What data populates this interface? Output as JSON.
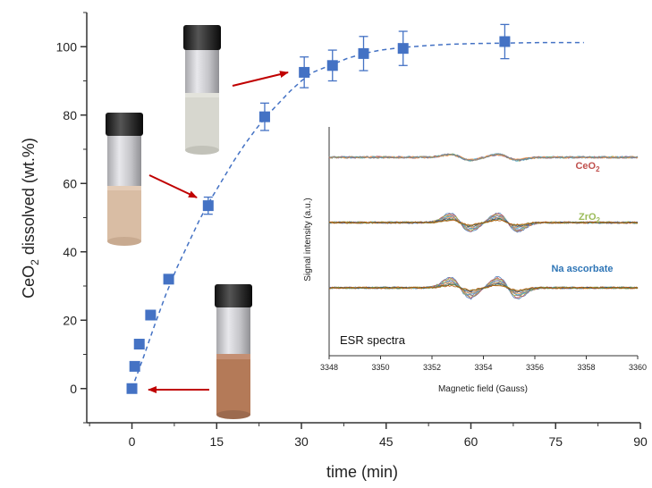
{
  "chart_data": {
    "type": "scatter",
    "xlabel": "time (min)",
    "ylabel_main": "CeO",
    "ylabel_sub": "2",
    "ylabel_rest": " dissolved (wt.%)",
    "xlim": [
      -8,
      90
    ],
    "ylim": [
      -10,
      110
    ],
    "x_ticks": [
      0,
      15,
      30,
      45,
      60,
      75,
      90
    ],
    "y_ticks": [
      0,
      20,
      40,
      60,
      80,
      100
    ],
    "series": [
      {
        "x": [
          0,
          0.5,
          1.3,
          3.3,
          6.5,
          13.5,
          23.5,
          30.5,
          35.5,
          41,
          48,
          66
        ],
        "y": [
          0,
          6.5,
          13,
          21.5,
          32,
          53.5,
          79.5,
          92.5,
          94.5,
          98,
          99.5,
          101.5
        ],
        "err": [
          0,
          0,
          0,
          0,
          0,
          2.5,
          4,
          4.5,
          4.5,
          5,
          5,
          5
        ]
      }
    ],
    "fit": {
      "x": [
        0,
        2,
        4,
        6,
        8,
        10,
        12,
        14,
        16,
        18,
        20,
        22,
        24,
        26,
        28,
        30,
        32,
        35,
        38,
        41,
        44,
        48,
        52,
        56,
        60,
        64,
        68,
        72,
        76,
        80
      ],
      "y": [
        0,
        9,
        18.5,
        27.5,
        35.5,
        42.5,
        49.5,
        55.5,
        61,
        66.5,
        71.5,
        76,
        80,
        83.5,
        87,
        90,
        92.5,
        94.5,
        96.5,
        98,
        99,
        99.8,
        100.3,
        100.7,
        100.9,
        101,
        101.1,
        101.2,
        101.2,
        101.2
      ]
    },
    "color": "#4472c4",
    "arrow_color": "#c00000",
    "inset": {
      "title": "ESR spectra",
      "xlabel": "Magnetic field (Gauss)",
      "ylabel": "Signal intensity (a.u.)",
      "xlim": [
        3348,
        3360
      ],
      "x_ticks": [
        3348,
        3350,
        3352,
        3354,
        3356,
        3358,
        3360
      ],
      "labels": [
        {
          "main": "CeO",
          "sub": "2",
          "color": "#c0504d"
        },
        {
          "main": "ZrO",
          "sub": "2",
          "color": "#9bbb59"
        },
        {
          "main": "Na ascorbate",
          "sub": "",
          "color": "#2e75b6"
        }
      ]
    }
  }
}
